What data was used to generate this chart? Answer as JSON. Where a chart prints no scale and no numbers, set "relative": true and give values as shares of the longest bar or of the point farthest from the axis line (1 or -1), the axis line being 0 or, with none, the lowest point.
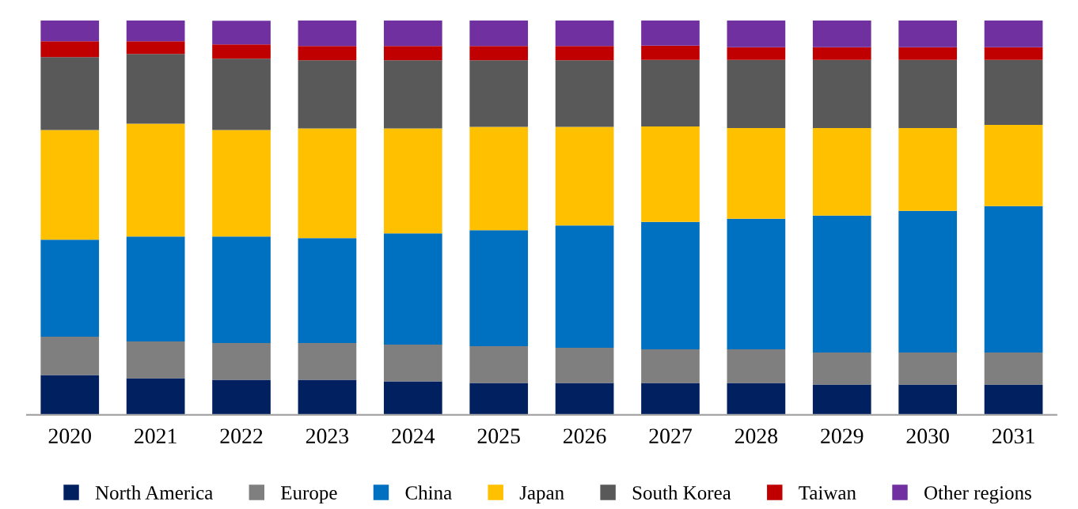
{
  "chart_data": {
    "type": "bar",
    "stacked": true,
    "relative": true,
    "legend": "bottom",
    "grid": false,
    "categories": [
      "2020",
      "2021",
      "2022",
      "2023",
      "2024",
      "2025",
      "2026",
      "2027",
      "2028",
      "2029",
      "2030",
      "2031"
    ],
    "series": [
      {
        "name": "North America",
        "color": "#002060",
        "values": [
          0.101,
          0.093,
          0.089,
          0.089,
          0.085,
          0.081,
          0.081,
          0.081,
          0.081,
          0.077,
          0.077,
          0.077
        ]
      },
      {
        "name": "Europe",
        "color": "#7f7f7f",
        "values": [
          0.097,
          0.093,
          0.093,
          0.093,
          0.093,
          0.093,
          0.089,
          0.085,
          0.085,
          0.081,
          0.081,
          0.081
        ]
      },
      {
        "name": "China",
        "color": "#0070c0",
        "values": [
          0.246,
          0.266,
          0.27,
          0.266,
          0.282,
          0.294,
          0.31,
          0.323,
          0.331,
          0.347,
          0.359,
          0.371
        ]
      },
      {
        "name": "Japan",
        "color": "#ffc000",
        "values": [
          0.278,
          0.286,
          0.27,
          0.278,
          0.266,
          0.262,
          0.25,
          0.242,
          0.23,
          0.222,
          0.21,
          0.206
        ]
      },
      {
        "name": "South Korea",
        "color": "#595959",
        "values": [
          0.185,
          0.177,
          0.181,
          0.173,
          0.173,
          0.169,
          0.169,
          0.169,
          0.173,
          0.173,
          0.173,
          0.165
        ]
      },
      {
        "name": "Taiwan",
        "color": "#c00000",
        "values": [
          0.04,
          0.032,
          0.036,
          0.036,
          0.036,
          0.036,
          0.036,
          0.036,
          0.032,
          0.032,
          0.032,
          0.032
        ]
      },
      {
        "name": "Other regions",
        "color": "#7030a0",
        "values": [
          0.053,
          0.053,
          0.06,
          0.065,
          0.065,
          0.065,
          0.065,
          0.064,
          0.068,
          0.068,
          0.068,
          0.068
        ]
      }
    ]
  }
}
